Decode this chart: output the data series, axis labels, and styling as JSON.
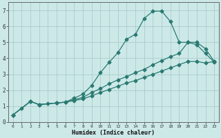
{
  "xlabel": "Humidex (Indice chaleur)",
  "background_color": "#cce9e8",
  "grid_color": "#aacccc",
  "line_color": "#2a7a72",
  "xlim": [
    -0.5,
    23.5
  ],
  "ylim": [
    0,
    7.5
  ],
  "xticks": [
    0,
    1,
    2,
    3,
    4,
    5,
    6,
    7,
    8,
    9,
    10,
    11,
    12,
    13,
    14,
    15,
    16,
    17,
    18,
    19,
    20,
    21,
    22,
    23
  ],
  "yticks": [
    0,
    1,
    2,
    3,
    4,
    5,
    6,
    7
  ],
  "line1_x": [
    0,
    1,
    2,
    3,
    4,
    5,
    6,
    7,
    8,
    9,
    10,
    11,
    12,
    13,
    14,
    15,
    16,
    17,
    18,
    19,
    20,
    21,
    22,
    23
  ],
  "line1_y": [
    0.45,
    0.85,
    1.3,
    1.1,
    1.15,
    1.2,
    1.25,
    1.5,
    1.75,
    2.3,
    3.1,
    3.75,
    4.35,
    5.2,
    5.5,
    6.5,
    6.95,
    6.95,
    6.3,
    5.0,
    5.0,
    4.85,
    4.3,
    3.75
  ],
  "line2_x": [
    0,
    2,
    3,
    5,
    6,
    7,
    8,
    9,
    10,
    11,
    12,
    13,
    14,
    15,
    16,
    17,
    18,
    19,
    20,
    21,
    22,
    23
  ],
  "line2_y": [
    0.45,
    1.3,
    1.1,
    1.2,
    1.25,
    1.4,
    1.55,
    1.85,
    2.1,
    2.4,
    2.65,
    2.85,
    3.1,
    3.3,
    3.6,
    3.85,
    4.1,
    4.3,
    5.0,
    5.0,
    4.6,
    3.8
  ],
  "line3_x": [
    0,
    2,
    3,
    5,
    6,
    7,
    8,
    9,
    10,
    11,
    12,
    13,
    14,
    15,
    16,
    17,
    18,
    19,
    20,
    21,
    22,
    23
  ],
  "line3_y": [
    0.45,
    1.3,
    1.1,
    1.2,
    1.25,
    1.35,
    1.45,
    1.65,
    1.85,
    2.05,
    2.25,
    2.45,
    2.6,
    2.8,
    3.0,
    3.2,
    3.4,
    3.6,
    3.8,
    3.8,
    3.7,
    3.8
  ],
  "markersize": 2.5,
  "linewidth": 0.9
}
